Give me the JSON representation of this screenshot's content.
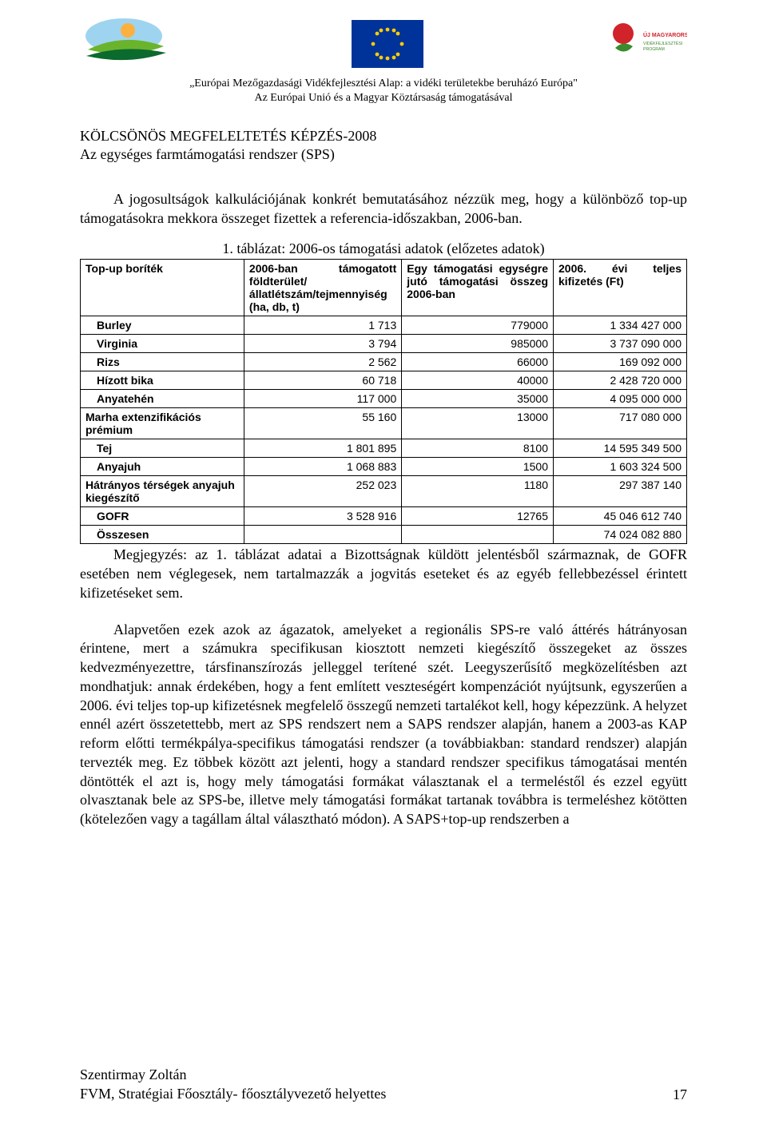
{
  "header": {
    "caption_line1": "„Európai Mezőgazdasági Vidékfejlesztési Alap: a vidéki területekbe beruházó Európa\"",
    "caption_line2": "Az Európai Unió és a Magyar Köztársaság támogatásával",
    "logo_left_colors": {
      "sky": "#9fd4f0",
      "sun": "#fbb040",
      "leaf": "#6ab42d",
      "swoosh": "#0b6a2e"
    },
    "logo_mid_colors": {
      "bg": "#003399",
      "star": "#ffcc00"
    },
    "logo_right_colors": {
      "flower": "#d1232a",
      "leaf": "#3c8a2e",
      "text": "#d1232a"
    },
    "logo_right_text1": "ÚJ MAGYARORSZÁG",
    "logo_right_text2": "VIDÉKFEJLESZTÉSI PROGRAM"
  },
  "title": "KÖLCSÖNÖS MEGFELELTETÉS KÉPZÉS-2008",
  "subtitle": "Az egységes farmtámogatási rendszer (SPS)",
  "intro_para": "A jogosultságok kalkulációjának konkrét bemutatásához nézzük meg, hogy a különböző top-up támogatásokra mekkora összeget fizettek a referencia-időszakban, 2006-ban.",
  "table_caption": "1. táblázat: 2006-os támogatási adatok (előzetes adatok)",
  "table": {
    "columns": [
      "Top-up boríték",
      "2006-ban támogatott földterület/állatlétszám/tejmennyiség (ha, db, t)",
      "Egy támogatási egységre jutó támogatási összeg 2006-ban",
      "2006. évi teljes kifizetés (Ft)"
    ],
    "rows": [
      {
        "label": "Burley",
        "c1": "1 713",
        "c2": "779000",
        "c3": "1 334 427 000",
        "indent": true
      },
      {
        "label": "Virginia",
        "c1": "3 794",
        "c2": "985000",
        "c3": "3 737 090 000",
        "indent": true
      },
      {
        "label": "Rizs",
        "c1": "2 562",
        "c2": "66000",
        "c3": "169 092 000",
        "indent": true
      },
      {
        "label": "Hízott bika",
        "c1": "60 718",
        "c2": "40000",
        "c3": "2 428 720 000",
        "indent": true
      },
      {
        "label": "Anyatehén",
        "c1": "117 000",
        "c2": "35000",
        "c3": "4 095 000 000",
        "indent": true
      },
      {
        "label": "Marha extenzifikációs prémium",
        "c1": "55 160",
        "c2": "13000",
        "c3": "717 080 000",
        "indent": false
      },
      {
        "label": "Tej",
        "c1": "1 801 895",
        "c2": "8100",
        "c3": "14 595 349 500",
        "indent": true
      },
      {
        "label": "Anyajuh",
        "c1": "1 068 883",
        "c2": "1500",
        "c3": "1 603 324 500",
        "indent": true
      },
      {
        "label": "Hátrányos térségek anyajuh kiegészítő",
        "c1": "252 023",
        "c2": "1180",
        "c3": "297 387 140",
        "indent": false
      },
      {
        "label": "GOFR",
        "c1": "3 528 916",
        "c2": "12765",
        "c3": "45 046 612 740",
        "indent": true
      },
      {
        "label": "Összesen",
        "c1": "",
        "c2": "",
        "c3": "74 024 082 880",
        "indent": true
      }
    ]
  },
  "note_para": "Megjegyzés: az 1. táblázat adatai a Bizottságnak küldött jelentésből származnak, de GOFR esetében nem véglegesek, nem tartalmazzák a jogvitás eseteket és az egyéb fellebbezéssel érintett kifizetéseket sem.",
  "body_para": "Alapvetően ezek azok az ágazatok, amelyeket a regionális SPS-re való áttérés hátrányosan érintene, mert a számukra specifikusan kiosztott nemzeti kiegészítő összegeket az összes kedvezményezettre, társfinanszírozás jelleggel terítené szét. Leegyszerűsítő megközelítésben azt mondhatjuk: annak érdekében, hogy a fent említett veszteségért kompenzációt nyújtsunk, egyszerűen a 2006. évi teljes top-up kifizetésnek megfelelő összegű nemzeti tartalékot kell, hogy képezzünk. A helyzet ennél azért összetettebb, mert az SPS rendszert nem a SAPS rendszer alapján, hanem a 2003-as KAP reform előtti termékpálya-specifikus támogatási rendszer (a továbbiakban: standard rendszer) alapján tervezték meg. Ez többek között azt jelenti, hogy a standard rendszer specifikus támogatásai mentén döntötték el azt is, hogy mely támogatási formákat választanak el a termeléstől és ezzel együtt olvasztanak bele az SPS-be, illetve mely támogatási formákat tartanak továbbra is termeléshez kötötten (kötelezően vagy a tagállam által választható módon). A SAPS+top-up rendszerben a",
  "footer": {
    "author": "Szentirmay Zoltán",
    "org": "FVM, Stratégiai Főosztály- főosztályvezető helyettes",
    "page": "17"
  }
}
